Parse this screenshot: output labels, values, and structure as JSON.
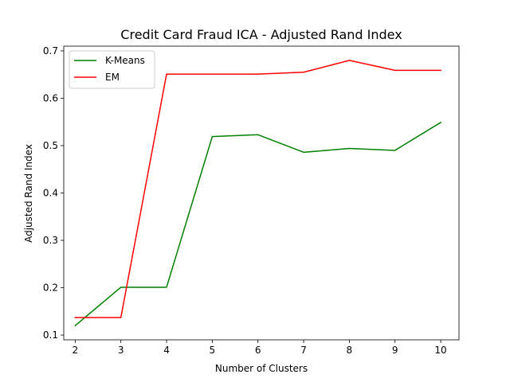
{
  "chart_data": {
    "type": "line",
    "title": "Credit Card Fraud ICA - Adjusted Rand Index",
    "xlabel": "Number of Clusters",
    "ylabel": "Adjusted Rand Index",
    "x": [
      2,
      3,
      4,
      5,
      6,
      7,
      8,
      9,
      10
    ],
    "xlim": [
      1.75,
      10.4
    ],
    "ylim": [
      0.09,
      0.71
    ],
    "xticks": [
      "2",
      "3",
      "4",
      "5",
      "6",
      "7",
      "8",
      "9",
      "10"
    ],
    "yticks": [
      "0.1",
      "0.2",
      "0.3",
      "0.4",
      "0.5",
      "0.6",
      "0.7"
    ],
    "grid": false,
    "legend_position": "top-left",
    "series": [
      {
        "name": "K-Means",
        "color": "#008000",
        "values": [
          0.12,
          0.201,
          0.201,
          0.519,
          0.523,
          0.486,
          0.494,
          0.49,
          0.549
        ]
      },
      {
        "name": "EM",
        "color": "#ff0000",
        "values": [
          0.137,
          0.137,
          0.651,
          0.651,
          0.651,
          0.655,
          0.68,
          0.659,
          0.659
        ]
      }
    ]
  }
}
